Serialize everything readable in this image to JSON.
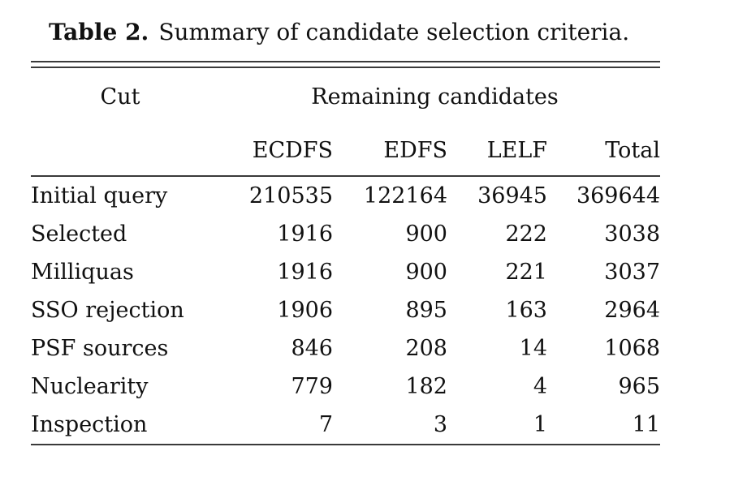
{
  "caption": {
    "label": "Table 2.",
    "text": "Summary of candidate selection criteria."
  },
  "table": {
    "cut_header": "Cut",
    "group_header": "Remaining candidates",
    "columns": [
      "ECDFS",
      "EDFS",
      "LELF",
      "Total"
    ],
    "rows": [
      {
        "cut": "Initial query",
        "values": [
          "210535",
          "122164",
          "36945",
          "369644"
        ]
      },
      {
        "cut": "Selected",
        "values": [
          "1916",
          "900",
          "222",
          "3038"
        ]
      },
      {
        "cut": "Milliquas",
        "values": [
          "1916",
          "900",
          "221",
          "3037"
        ]
      },
      {
        "cut": "SSO rejection",
        "values": [
          "1906",
          "895",
          "163",
          "2964"
        ]
      },
      {
        "cut": "PSF sources",
        "values": [
          "846",
          "208",
          "14",
          "1068"
        ]
      },
      {
        "cut": "Nuclearity",
        "values": [
          "779",
          "182",
          "4",
          "965"
        ]
      },
      {
        "cut": "Inspection",
        "values": [
          "7",
          "3",
          "1",
          "11"
        ]
      }
    ]
  },
  "colors": {
    "text": "#111111",
    "rule": "#3a3a3a",
    "background": "#ffffff"
  }
}
